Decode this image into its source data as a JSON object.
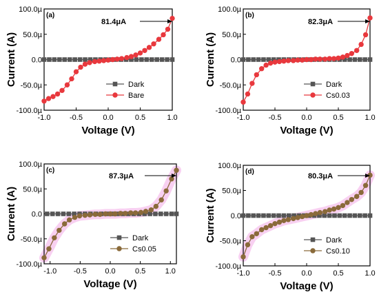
{
  "chart_data": [
    {
      "type": "line",
      "panel_label": "(a)",
      "xlabel": "Voltage (V)",
      "ylabel": "Current (A)",
      "xlim": [
        -1.0,
        1.0
      ],
      "ylim": [
        -100,
        100
      ],
      "xticks": [
        -1.0,
        -0.5,
        0.0,
        0.5,
        1.0
      ],
      "xtick_labels": [
        "-1.0",
        "-0.5",
        "0.0",
        "0.5",
        "1.0"
      ],
      "yticks": [
        -100,
        -50,
        0,
        50,
        100
      ],
      "ytick_labels": [
        "-100.0µ",
        "-50.0µ",
        "0.0",
        "50.0µ",
        "100.0µ"
      ],
      "annotation": "81.4μA",
      "legend_position": "lower-right",
      "series": [
        {
          "name": "Dark",
          "marker": "square",
          "color": "#555555",
          "x": [
            -1.0,
            -0.92,
            -0.84,
            -0.76,
            -0.68,
            -0.6,
            -0.52,
            -0.44,
            -0.36,
            -0.28,
            -0.2,
            -0.12,
            -0.04,
            0.04,
            0.12,
            0.2,
            0.28,
            0.36,
            0.44,
            0.52,
            0.6,
            0.68,
            0.76,
            0.84,
            0.92,
            1.0
          ],
          "y": [
            0,
            0,
            0,
            0,
            0,
            0,
            0,
            0,
            0,
            0,
            0,
            0,
            0,
            0,
            0,
            0,
            0,
            0,
            0,
            0,
            0,
            0,
            0,
            0,
            0,
            0
          ]
        },
        {
          "name": "Bare",
          "marker": "circle",
          "color": "#e8383d",
          "x": [
            -1.0,
            -0.93,
            -0.86,
            -0.79,
            -0.72,
            -0.64,
            -0.57,
            -0.5,
            -0.43,
            -0.36,
            -0.29,
            -0.21,
            -0.14,
            -0.07,
            0.0,
            0.07,
            0.14,
            0.21,
            0.29,
            0.36,
            0.43,
            0.5,
            0.57,
            0.64,
            0.71,
            0.79,
            0.86,
            0.93,
            1.0
          ],
          "y": [
            -82,
            -77,
            -73,
            -68,
            -61,
            -50,
            -38,
            -24,
            -15,
            -9,
            -6,
            -4,
            -3,
            -2,
            -1,
            0,
            1,
            2,
            4,
            6,
            9,
            13,
            18,
            24,
            31,
            40,
            49,
            60,
            81.4
          ]
        }
      ]
    },
    {
      "type": "line",
      "panel_label": "(b)",
      "xlabel": "Voltage (V)",
      "ylabel": "Current (A)",
      "xlim": [
        -1.0,
        1.0
      ],
      "ylim": [
        -100,
        100
      ],
      "xticks": [
        -1.0,
        -0.5,
        0.0,
        0.5,
        1.0
      ],
      "xtick_labels": [
        "-1.0",
        "-0.5",
        "0.0",
        "0.5",
        "1.0"
      ],
      "yticks": [
        -100,
        -50,
        0,
        50,
        100
      ],
      "ytick_labels": [
        "-100.0µ",
        "-50.0µ",
        "0.0",
        "50.0µ",
        "100.0µ"
      ],
      "annotation": "82.3μA",
      "legend_position": "lower-right",
      "series": [
        {
          "name": "Dark",
          "marker": "square",
          "color": "#555555",
          "x": [
            -1.0,
            -0.92,
            -0.84,
            -0.76,
            -0.68,
            -0.6,
            -0.52,
            -0.44,
            -0.36,
            -0.28,
            -0.2,
            -0.12,
            -0.04,
            0.04,
            0.12,
            0.2,
            0.28,
            0.36,
            0.44,
            0.52,
            0.6,
            0.68,
            0.76,
            0.84,
            0.92,
            1.0
          ],
          "y": [
            0,
            0,
            0,
            0,
            0,
            0,
            0,
            0,
            0,
            0,
            0,
            0,
            0,
            0,
            0,
            0,
            0,
            0,
            0,
            0,
            0,
            0,
            0,
            0,
            0,
            0
          ]
        },
        {
          "name": "Cs0.03",
          "marker": "circle",
          "color": "#e8383d",
          "x": [
            -1.0,
            -0.93,
            -0.86,
            -0.79,
            -0.71,
            -0.64,
            -0.57,
            -0.5,
            -0.43,
            -0.36,
            -0.29,
            -0.21,
            -0.14,
            -0.07,
            0.0,
            0.07,
            0.14,
            0.21,
            0.29,
            0.36,
            0.43,
            0.5,
            0.57,
            0.64,
            0.71,
            0.79,
            0.86,
            0.93,
            1.0
          ],
          "y": [
            -84,
            -68,
            -47,
            -30,
            -18,
            -11,
            -7,
            -5,
            -4,
            -3,
            -2,
            -2,
            -1,
            -1,
            0,
            0,
            1,
            1,
            1,
            2,
            2,
            3,
            5,
            8,
            12,
            18,
            30,
            49,
            82.3
          ]
        }
      ]
    },
    {
      "type": "line",
      "panel_label": "(c)",
      "xlabel": "Voltage (V)",
      "ylabel": "Current (A)",
      "xlim": [
        -1.1,
        1.1
      ],
      "ylim": [
        -100,
        100
      ],
      "xticks": [
        -1.0,
        -0.5,
        0.0,
        0.5,
        1.0
      ],
      "xtick_labels": [
        "-1.0",
        "-0.5",
        "0.0",
        "0.5",
        "1.0"
      ],
      "yticks": [
        -100,
        -50,
        0,
        50,
        100
      ],
      "ytick_labels": [
        "-100.0µ",
        "-50.0µ",
        "0.0",
        "50.0µ",
        "100.0µ"
      ],
      "annotation": "87.3μA",
      "legend_position": "lower-right",
      "series": [
        {
          "name": "Dark",
          "marker": "square",
          "color": "#555555",
          "x": [
            -1.05,
            -0.96,
            -0.87,
            -0.78,
            -0.69,
            -0.6,
            -0.51,
            -0.42,
            -0.33,
            -0.24,
            -0.15,
            -0.06,
            0.03,
            0.12,
            0.21,
            0.3,
            0.39,
            0.48,
            0.57,
            0.66,
            0.75,
            0.84,
            0.93,
            1.02,
            1.1
          ],
          "y": [
            0,
            0,
            0,
            0,
            0,
            0,
            0,
            0,
            0,
            0,
            0,
            0,
            0,
            0,
            0,
            0,
            0,
            0,
            0,
            0,
            0,
            0,
            0,
            0,
            0
          ]
        },
        {
          "name": "Cs0.05",
          "marker": "circle",
          "color": "#8a6a3a",
          "x": [
            -1.1,
            -1.02,
            -0.93,
            -0.85,
            -0.76,
            -0.68,
            -0.59,
            -0.51,
            -0.42,
            -0.34,
            -0.25,
            -0.17,
            -0.08,
            0.0,
            0.08,
            0.17,
            0.25,
            0.34,
            0.42,
            0.51,
            0.59,
            0.68,
            0.76,
            0.85,
            0.93,
            1.02,
            1.1
          ],
          "y": [
            -88,
            -70,
            -48,
            -33,
            -20,
            -12,
            -7,
            -4,
            -3,
            -2,
            -1,
            -1,
            0,
            0,
            0,
            1,
            1,
            2,
            2,
            3,
            5,
            8,
            15,
            28,
            46,
            70,
            87.3
          ]
        }
      ]
    },
    {
      "type": "line",
      "panel_label": "(d)",
      "xlabel": "Voltage (V)",
      "ylabel": "Current (A)",
      "xlim": [
        -1.0,
        1.0
      ],
      "ylim": [
        -100,
        100
      ],
      "xticks": [
        -1.0,
        -0.5,
        0.0,
        0.5,
        1.0
      ],
      "xtick_labels": [
        "-1.0",
        "-0.5",
        "0.0",
        "0.5",
        "1.0"
      ],
      "yticks": [
        -100,
        -50,
        0,
        50,
        100
      ],
      "ytick_labels": [
        "-100.0µ",
        "-50.0µ",
        "0.0",
        "50.0µ",
        "100.0µ"
      ],
      "annotation": "80.3μA",
      "legend_position": "lower-right",
      "series": [
        {
          "name": "Dark",
          "marker": "square",
          "color": "#555555",
          "x": [
            -1.0,
            -0.92,
            -0.84,
            -0.76,
            -0.68,
            -0.6,
            -0.52,
            -0.44,
            -0.36,
            -0.28,
            -0.2,
            -0.12,
            -0.04,
            0.04,
            0.12,
            0.2,
            0.28,
            0.36,
            0.44,
            0.52,
            0.6,
            0.68,
            0.76,
            0.84,
            0.92,
            1.0
          ],
          "y": [
            0,
            0,
            0,
            0,
            0,
            0,
            0,
            0,
            0,
            0,
            0,
            0,
            0,
            0,
            0,
            0,
            0,
            0,
            0,
            0,
            0,
            0,
            0,
            0,
            0,
            0
          ]
        },
        {
          "name": "Cs0.10",
          "marker": "circle",
          "color": "#8a6a3a",
          "x": [
            -1.0,
            -0.93,
            -0.86,
            -0.79,
            -0.71,
            -0.64,
            -0.57,
            -0.5,
            -0.43,
            -0.36,
            -0.29,
            -0.21,
            -0.14,
            -0.07,
            0.0,
            0.07,
            0.14,
            0.21,
            0.29,
            0.36,
            0.43,
            0.5,
            0.57,
            0.64,
            0.71,
            0.79,
            0.86,
            0.93,
            1.0
          ],
          "y": [
            -82,
            -58,
            -42,
            -36,
            -28,
            -24,
            -20,
            -16,
            -13,
            -10,
            -8,
            -6,
            -4,
            -2,
            0,
            2,
            4,
            6,
            8,
            11,
            13,
            16,
            20,
            26,
            32,
            38,
            46,
            60,
            80.3
          ]
        }
      ]
    }
  ]
}
